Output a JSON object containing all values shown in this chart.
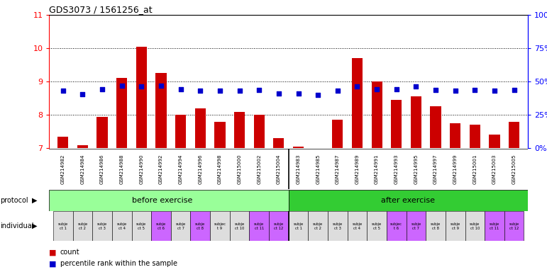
{
  "title": "GDS3073 / 1561256_at",
  "gsm_labels": [
    "GSM214982",
    "GSM214984",
    "GSM214986",
    "GSM214988",
    "GSM214990",
    "GSM214992",
    "GSM214994",
    "GSM214996",
    "GSM214998",
    "GSM215000",
    "GSM215002",
    "GSM215004",
    "GSM214983",
    "GSM214985",
    "GSM214987",
    "GSM214989",
    "GSM214991",
    "GSM214993",
    "GSM214995",
    "GSM214997",
    "GSM214999",
    "GSM215001",
    "GSM215003",
    "GSM215005"
  ],
  "bar_values": [
    7.35,
    7.1,
    7.95,
    9.1,
    10.05,
    9.25,
    8.0,
    8.2,
    7.8,
    8.1,
    8.0,
    7.3,
    7.05,
    7.0,
    7.85,
    9.7,
    9.0,
    8.45,
    8.55,
    8.25,
    7.75,
    7.7,
    7.4,
    7.8
  ],
  "dot_values": [
    8.72,
    8.62,
    8.78,
    8.88,
    8.85,
    8.88,
    8.78,
    8.72,
    8.72,
    8.72,
    8.75,
    8.65,
    8.65,
    8.6,
    8.72,
    8.85,
    8.78,
    8.78,
    8.85,
    8.75,
    8.72,
    8.75,
    8.72,
    8.75
  ],
  "ylim": [
    7,
    11
  ],
  "yticks_left": [
    7,
    8,
    9,
    10,
    11
  ],
  "yticks_right": [
    0,
    25,
    50,
    75,
    100
  ],
  "bar_color": "#cc0000",
  "dot_color": "#0000cc",
  "protocol_before": "before exercise",
  "protocol_after": "after exercise",
  "before_color": "#99ff99",
  "after_color": "#33cc33",
  "individual_labels_before": [
    "subje\nct 1",
    "subje\nct 2",
    "subje\nct 3",
    "subje\nct 4",
    "subje\nct 5",
    "subje\nct 6",
    "subje\nct 7",
    "subje\nct 8",
    "subjec\nt 9",
    "subje\nct 10",
    "subje\nct 11",
    "subje\nct 12"
  ],
  "individual_labels_after": [
    "subje\nct 1",
    "subje\nct 2",
    "subje\nct 3",
    "subje\nct 4",
    "subje\nct 5",
    "subjec\nt 6",
    "subje\nct 7",
    "subje\nct 8",
    "subje\nct 9",
    "subje\nct 10",
    "subje\nct 11",
    "subje\nct 12"
  ],
  "individual_color_before": [
    "#dddddd",
    "#dddddd",
    "#dddddd",
    "#dddddd",
    "#dddddd",
    "#cc66ff",
    "#dddddd",
    "#cc66ff",
    "#dddddd",
    "#dddddd",
    "#cc66ff",
    "#cc66ff"
  ],
  "individual_color_after": [
    "#dddddd",
    "#dddddd",
    "#dddddd",
    "#dddddd",
    "#dddddd",
    "#cc66ff",
    "#cc66ff",
    "#dddddd",
    "#dddddd",
    "#dddddd",
    "#cc66ff",
    "#cc66ff"
  ],
  "legend_count": "count",
  "legend_percentile": "percentile rank within the sample",
  "background_color": "#ffffff",
  "plot_bg_color": "#ffffff",
  "xticklabel_bg": "#cccccc",
  "sep_before_after": 11.5
}
